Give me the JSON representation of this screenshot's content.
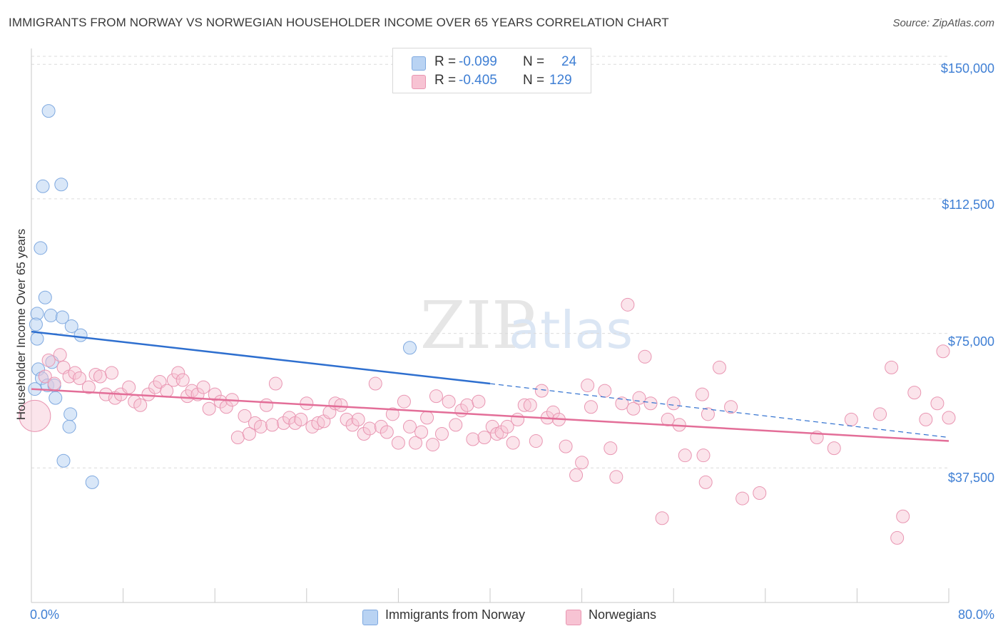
{
  "title": "IMMIGRANTS FROM NORWAY VS NORWEGIAN HOUSEHOLDER INCOME OVER 65 YEARS CORRELATION CHART",
  "source": "Source: ZipAtlas.com",
  "watermark": "ZIPatlas",
  "legend": {
    "series1": {
      "r_label": "R =",
      "r_value": "-0.099",
      "n_label": "N =",
      "n_value": "24"
    },
    "series2": {
      "r_label": "R =",
      "r_value": "-0.405",
      "n_label": "N =",
      "n_value": "129"
    }
  },
  "colors": {
    "blue": "#3f7fd4",
    "blue_fill": "#b9d3f3",
    "blue_line": "#2e6fcf",
    "pink_fill": "#f7c3d3",
    "pink_line": "#e36e98"
  },
  "chart_data": {
    "type": "scatter",
    "title": "IMMIGRANTS FROM NORWAY VS NORWEGIAN HOUSEHOLDER INCOME OVER 65 YEARS CORRELATION CHART",
    "xlabel": "",
    "ylabel": "Householder Income Over 65 years",
    "xlim": [
      0,
      80
    ],
    "ylim": [
      0,
      156000
    ],
    "x_tick_labels": [
      "0.0%",
      "80.0%"
    ],
    "y_ticks": [
      37500,
      75000,
      112500,
      150000
    ],
    "y_tick_labels": [
      "$37,500",
      "$75,000",
      "$112,500",
      "$150,000"
    ],
    "grid": true,
    "legend_position": "top-center",
    "series": [
      {
        "name": "Immigrants from Norway",
        "r": -0.099,
        "n": 24,
        "trend": {
          "x0": 0,
          "y0": 75500,
          "x1": 40,
          "y1": 61000,
          "dash_to_x": 80,
          "dash_to_y": 46000
        },
        "points": [
          [
            1.5,
            137000
          ],
          [
            1.0,
            116000
          ],
          [
            2.6,
            116500
          ],
          [
            0.8,
            98800
          ],
          [
            1.2,
            85000
          ],
          [
            0.5,
            80500
          ],
          [
            1.7,
            80000
          ],
          [
            2.7,
            79500
          ],
          [
            0.4,
            77500
          ],
          [
            3.5,
            77000
          ],
          [
            4.3,
            74500
          ],
          [
            0.5,
            73500
          ],
          [
            33.0,
            71000
          ],
          [
            1.8,
            67000
          ],
          [
            0.6,
            65000
          ],
          [
            0.9,
            62500
          ],
          [
            1.4,
            60500
          ],
          [
            2.0,
            60500
          ],
          [
            0.3,
            59500
          ],
          [
            2.1,
            57000
          ],
          [
            3.4,
            52500
          ],
          [
            3.3,
            49000
          ],
          [
            2.8,
            39500
          ],
          [
            5.3,
            33500
          ]
        ]
      },
      {
        "name": "Norwegians",
        "r": -0.405,
        "n": 129,
        "trend": {
          "x0": 0,
          "y0": 59500,
          "x1": 80,
          "y1": 45000
        },
        "points": [
          [
            0.3,
            52000
          ],
          [
            1.5,
            67500
          ],
          [
            2.5,
            69000
          ],
          [
            1.2,
            63000
          ],
          [
            2.0,
            61000
          ],
          [
            2.8,
            65500
          ],
          [
            3.3,
            63000
          ],
          [
            3.8,
            64000
          ],
          [
            4.2,
            62500
          ],
          [
            5.0,
            60000
          ],
          [
            5.6,
            63500
          ],
          [
            6.0,
            63000
          ],
          [
            6.5,
            58000
          ],
          [
            7.0,
            64000
          ],
          [
            7.3,
            57000
          ],
          [
            7.8,
            58000
          ],
          [
            8.5,
            60000
          ],
          [
            9.0,
            56000
          ],
          [
            9.5,
            55000
          ],
          [
            10.2,
            58000
          ],
          [
            10.8,
            60000
          ],
          [
            11.2,
            61500
          ],
          [
            11.8,
            59000
          ],
          [
            12.4,
            62000
          ],
          [
            12.8,
            64000
          ],
          [
            13.2,
            62000
          ],
          [
            13.6,
            57500
          ],
          [
            14.0,
            59000
          ],
          [
            14.5,
            58000
          ],
          [
            15.0,
            60000
          ],
          [
            15.5,
            54000
          ],
          [
            16.0,
            58000
          ],
          [
            16.5,
            56000
          ],
          [
            17.0,
            54500
          ],
          [
            17.5,
            56500
          ],
          [
            18.0,
            46000
          ],
          [
            18.6,
            52000
          ],
          [
            19.0,
            47000
          ],
          [
            19.5,
            50000
          ],
          [
            20.0,
            49000
          ],
          [
            20.5,
            55000
          ],
          [
            21.0,
            49500
          ],
          [
            21.3,
            61000
          ],
          [
            22.0,
            50000
          ],
          [
            22.5,
            51500
          ],
          [
            23.0,
            50000
          ],
          [
            23.5,
            51000
          ],
          [
            24.0,
            55500
          ],
          [
            24.5,
            49000
          ],
          [
            25.0,
            50000
          ],
          [
            25.5,
            50500
          ],
          [
            26.0,
            53000
          ],
          [
            26.5,
            55500
          ],
          [
            27.0,
            55000
          ],
          [
            27.5,
            51000
          ],
          [
            28.0,
            49500
          ],
          [
            28.5,
            51000
          ],
          [
            29.0,
            47000
          ],
          [
            29.5,
            48500
          ],
          [
            30.0,
            61000
          ],
          [
            30.5,
            49000
          ],
          [
            31.0,
            47500
          ],
          [
            31.5,
            52500
          ],
          [
            32.0,
            44500
          ],
          [
            32.5,
            56000
          ],
          [
            33.0,
            49000
          ],
          [
            33.5,
            44500
          ],
          [
            34.0,
            47500
          ],
          [
            34.5,
            51500
          ],
          [
            35.0,
            44000
          ],
          [
            35.3,
            57500
          ],
          [
            35.8,
            47000
          ],
          [
            36.4,
            56000
          ],
          [
            37.0,
            49500
          ],
          [
            37.5,
            53500
          ],
          [
            38.0,
            55000
          ],
          [
            38.5,
            45500
          ],
          [
            39.0,
            56000
          ],
          [
            39.5,
            46000
          ],
          [
            40.2,
            49000
          ],
          [
            40.6,
            47000
          ],
          [
            41.0,
            47500
          ],
          [
            41.5,
            49000
          ],
          [
            42.0,
            44500
          ],
          [
            42.4,
            51000
          ],
          [
            43.0,
            55000
          ],
          [
            43.5,
            55000
          ],
          [
            44.0,
            45000
          ],
          [
            44.5,
            59000
          ],
          [
            45.0,
            51500
          ],
          [
            45.5,
            53000
          ],
          [
            46.0,
            51000
          ],
          [
            46.6,
            43500
          ],
          [
            47.5,
            35500
          ],
          [
            48.0,
            39000
          ],
          [
            48.5,
            60500
          ],
          [
            48.8,
            54500
          ],
          [
            50.0,
            59000
          ],
          [
            50.5,
            43000
          ],
          [
            51.0,
            35000
          ],
          [
            51.5,
            55500
          ],
          [
            52.0,
            83000
          ],
          [
            52.5,
            54000
          ],
          [
            53.0,
            57000
          ],
          [
            53.5,
            68500
          ],
          [
            54.0,
            55500
          ],
          [
            55.0,
            23500
          ],
          [
            55.5,
            51000
          ],
          [
            56.0,
            55500
          ],
          [
            56.5,
            49500
          ],
          [
            57.0,
            41000
          ],
          [
            58.5,
            58000
          ],
          [
            58.6,
            41000
          ],
          [
            58.8,
            33500
          ],
          [
            59.0,
            52500
          ],
          [
            60.0,
            65500
          ],
          [
            61.0,
            54500
          ],
          [
            62.0,
            29000
          ],
          [
            63.5,
            30500
          ],
          [
            68.5,
            46000
          ],
          [
            70.0,
            43000
          ],
          [
            71.5,
            51000
          ],
          [
            74.0,
            52500
          ],
          [
            75.0,
            65500
          ],
          [
            76.0,
            24000
          ],
          [
            75.5,
            18000
          ],
          [
            77.0,
            58500
          ],
          [
            79.5,
            70000
          ],
          [
            78.0,
            51000
          ],
          [
            79.0,
            55500
          ],
          [
            80.0,
            51500
          ]
        ]
      }
    ]
  }
}
